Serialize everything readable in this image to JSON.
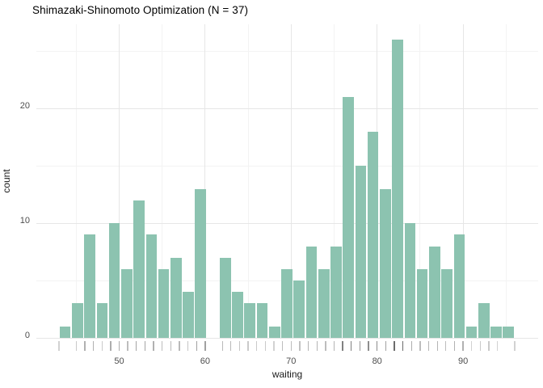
{
  "chart_data": {
    "type": "bar",
    "subtype": "histogram",
    "title": "Shimazaki-Shinomoto Optimization (N = 37)",
    "xlabel": "waiting",
    "ylabel": "count",
    "n_bins": 37,
    "bin_start": 43,
    "bin_end": 96,
    "bin_width": 1.4324,
    "counts": [
      1,
      3,
      9,
      3,
      10,
      6,
      12,
      9,
      6,
      7,
      4,
      13,
      0,
      7,
      4,
      3,
      3,
      1,
      6,
      5,
      8,
      6,
      8,
      21,
      15,
      18,
      13,
      26,
      10,
      6,
      8,
      6,
      9,
      1,
      3,
      1,
      1
    ],
    "total_observations": 272,
    "x_major_ticks": [
      50,
      60,
      70,
      80,
      90
    ],
    "x_minor_gridlines": [
      45,
      55,
      65,
      75,
      85,
      95
    ],
    "y_major_ticks": [
      0,
      10,
      20
    ],
    "y_minor_gridlines": [
      5,
      15,
      25
    ],
    "rug_values": [
      43,
      45,
      46,
      47,
      48,
      49,
      50,
      51,
      52,
      53,
      54,
      55,
      56,
      57,
      58,
      59,
      60,
      62,
      63,
      64,
      65,
      66,
      67,
      68,
      69,
      70,
      71,
      72,
      73,
      74,
      75,
      76,
      77,
      78,
      79,
      80,
      81,
      82,
      83,
      84,
      85,
      86,
      87,
      88,
      89,
      90,
      91,
      92,
      93,
      94,
      96
    ],
    "xlim": [
      40.5,
      98.7
    ],
    "ylim": [
      0,
      27.4
    ],
    "grid": true,
    "legend": "none",
    "colors": {
      "bar_fill": "#8cc3b0",
      "background": "#ffffff",
      "grid_major": "#e6e6e6",
      "grid_minor": "#f3f3f3",
      "title_text": "#000000",
      "axis_text": "#4d4d4d",
      "axis_title_text": "#1a1a1a"
    }
  }
}
